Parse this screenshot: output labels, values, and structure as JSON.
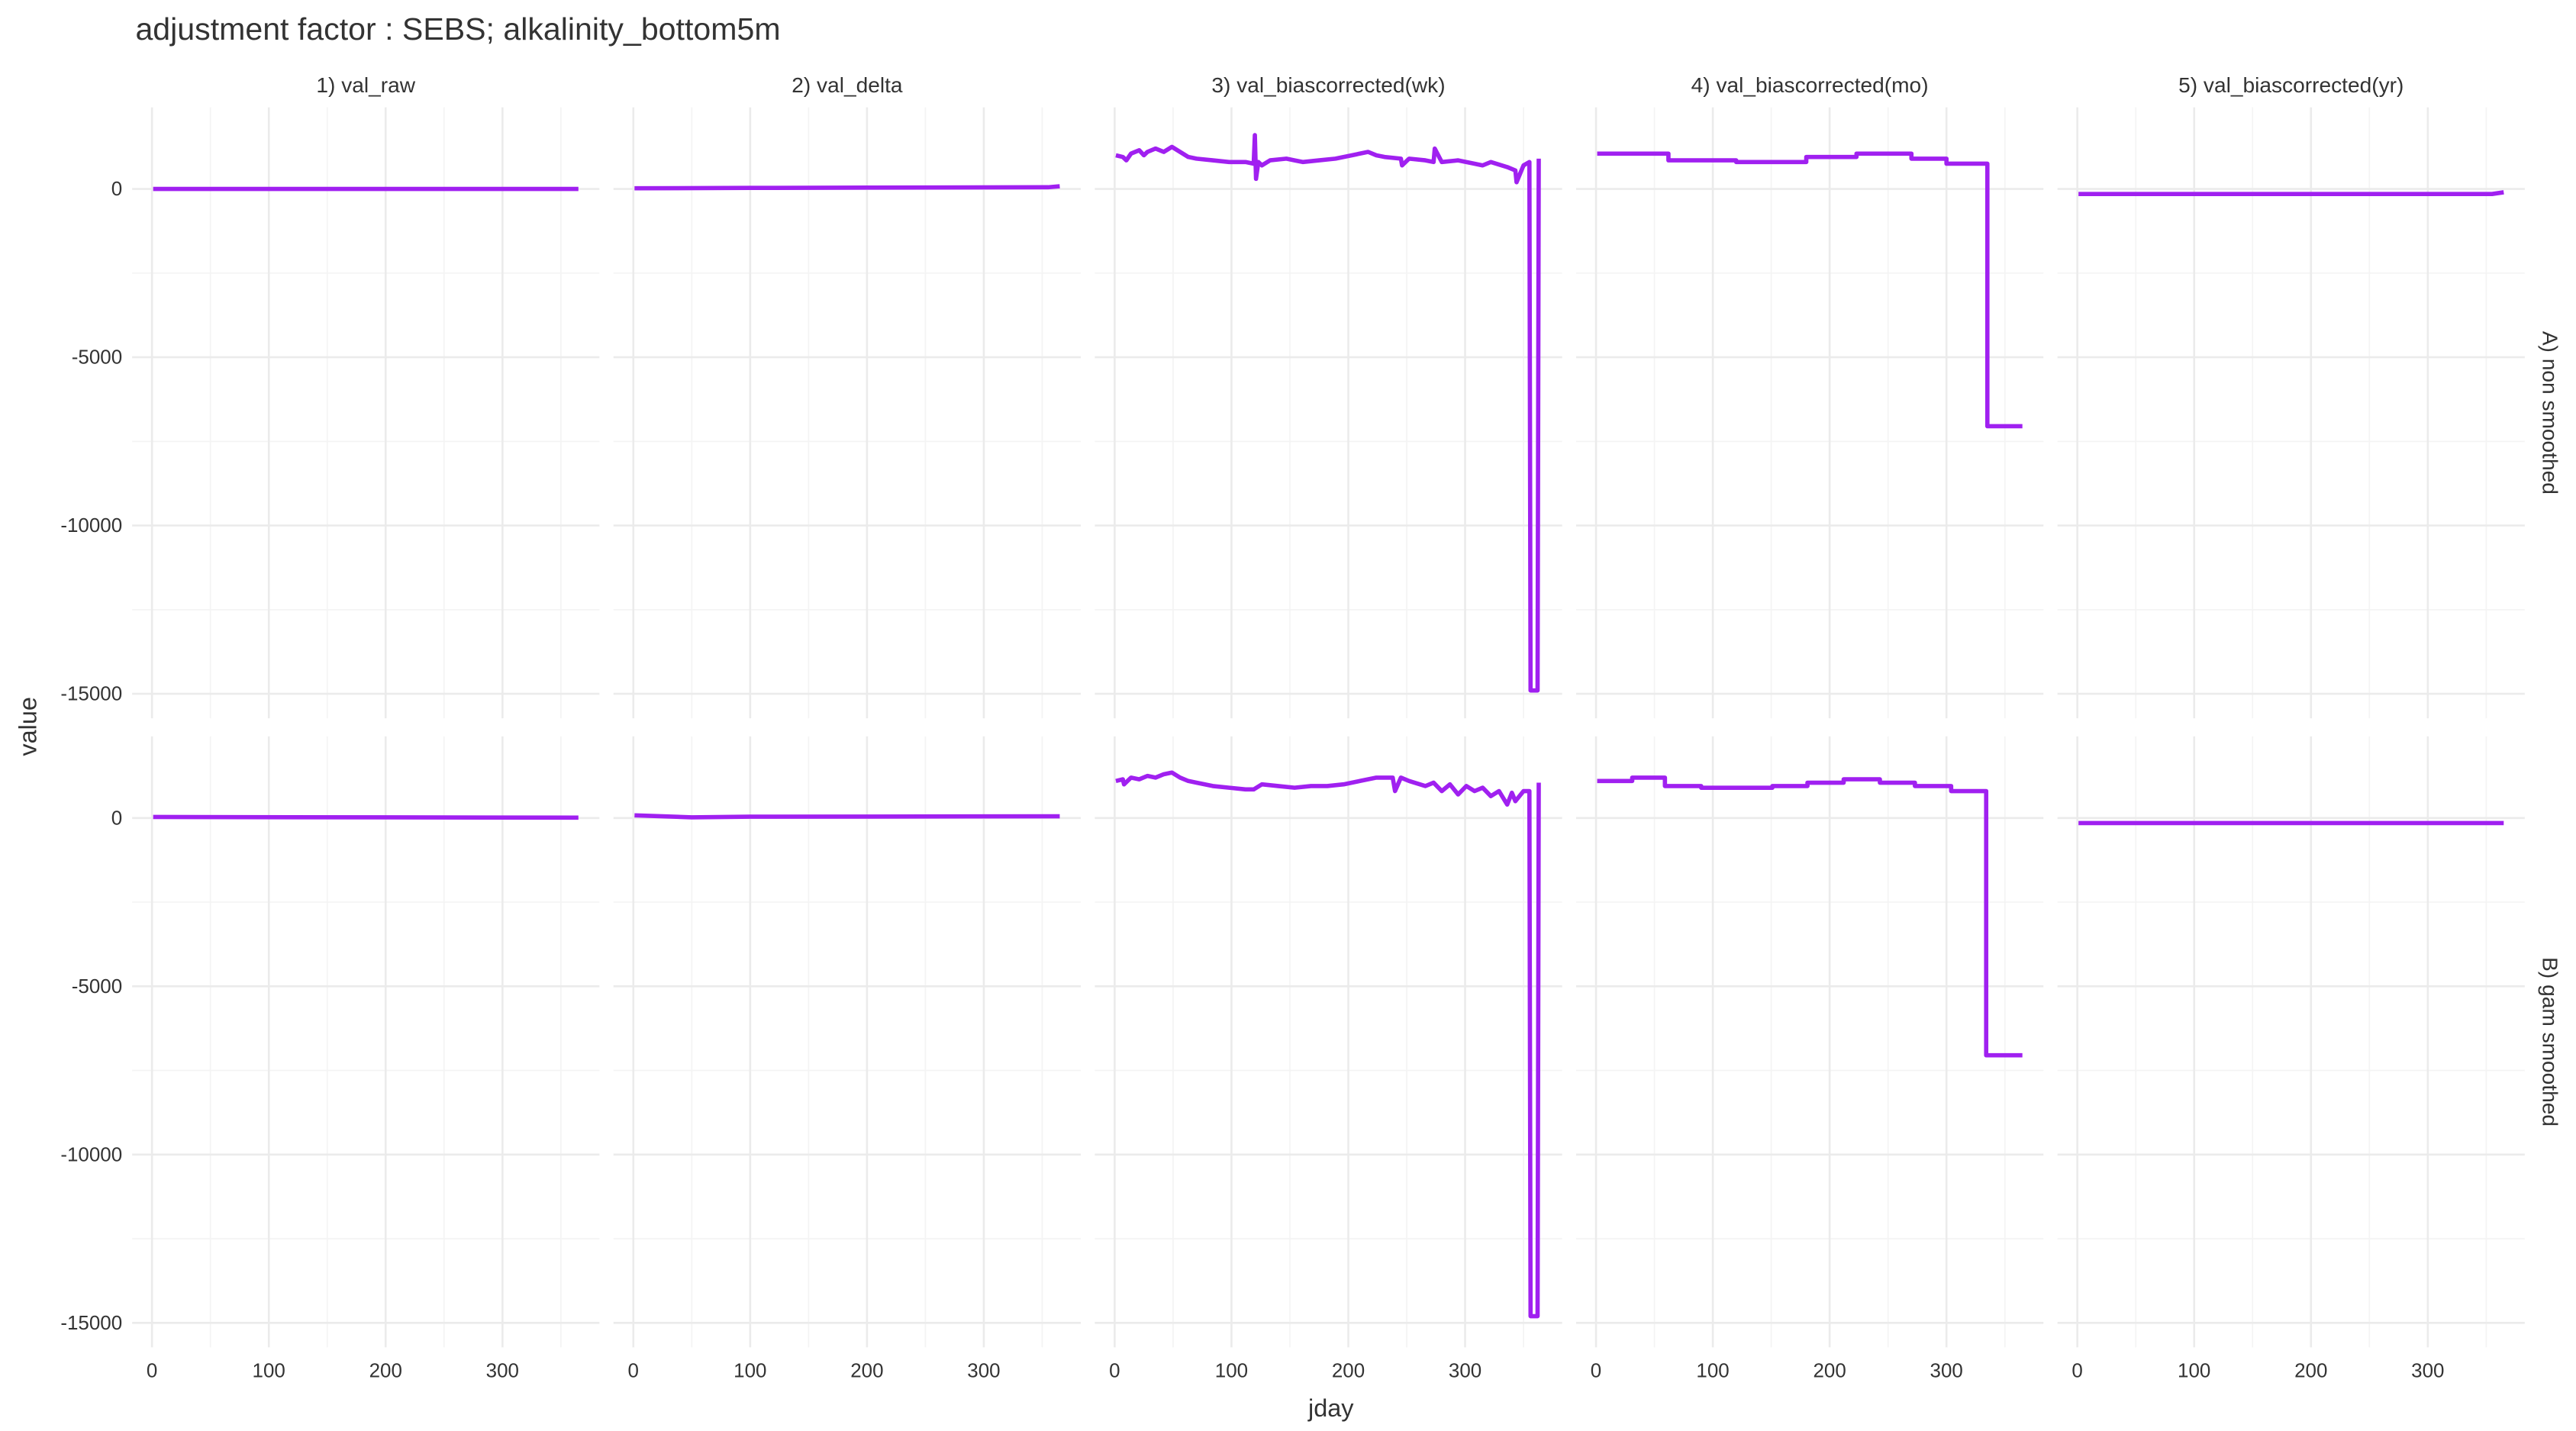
{
  "chart_data": {
    "type": "facet-line",
    "title": "adjustment factor : SEBS; alkalinity_bottom5m",
    "x_label": "jday",
    "y_label": "value",
    "columns": [
      "1) val_raw",
      "2) val_delta",
      "3) val_biascorrected(wk)",
      "4) val_biascorrected(mo)",
      "5) val_biascorrected(yr)"
    ],
    "rows": [
      "A) non smoothed",
      "B) gam smoothed"
    ],
    "color": "#a020f0",
    "grid": true,
    "xlim": [
      -17,
      383
    ],
    "xticks": [
      0,
      100,
      200,
      300
    ],
    "xminorticks": [
      50,
      150,
      250,
      350
    ],
    "ylim": [
      -15725,
      2425
    ],
    "yticks": [
      -15000,
      -10000,
      -5000,
      0
    ],
    "yminorticks": [
      -12500,
      -7500,
      -2500
    ],
    "panels": [
      [
        {
          "x": [
            1,
            365
          ],
          "values": [
            0,
            0
          ]
        },
        {
          "x": [
            1,
            100,
            200,
            355,
            365
          ],
          "values": [
            20,
            30,
            40,
            50,
            80
          ]
        },
        {
          "x": [
            1,
            7,
            10,
            14,
            21,
            25,
            28,
            35,
            42,
            49,
            56,
            63,
            70,
            84,
            98,
            112,
            119,
            120,
            121,
            123,
            126,
            133,
            147,
            154,
            161,
            175,
            189,
            203,
            217,
            224,
            231,
            245,
            246,
            252,
            266,
            273,
            274,
            280,
            294,
            308,
            315,
            322,
            336,
            343,
            344,
            350,
            355,
            356,
            362,
            363
          ],
          "values": [
            1000,
            950,
            850,
            1050,
            1150,
            1000,
            1100,
            1200,
            1100,
            1250,
            1100,
            950,
            900,
            850,
            800,
            800,
            750,
            1600,
            300,
            800,
            700,
            850,
            900,
            850,
            800,
            850,
            900,
            1000,
            1100,
            1000,
            950,
            900,
            700,
            900,
            850,
            800,
            1200,
            800,
            850,
            750,
            700,
            800,
            650,
            550,
            200,
            700,
            800,
            -14900,
            -14900,
            900
          ]
        },
        {
          "x": [
            1,
            62,
            62,
            120,
            120,
            180,
            180,
            223,
            223,
            270,
            270,
            300,
            300,
            335,
            335,
            365
          ],
          "values": [
            1050,
            1050,
            850,
            850,
            800,
            800,
            950,
            950,
            1050,
            1050,
            900,
            900,
            750,
            750,
            -7050,
            -7050
          ]
        },
        {
          "x": [
            1,
            355,
            365
          ],
          "values": [
            -150,
            -150,
            -100
          ]
        }
      ],
      [
        {
          "x": [
            1,
            365
          ],
          "values": [
            30,
            10
          ]
        },
        {
          "x": [
            1,
            50,
            100,
            365
          ],
          "values": [
            80,
            20,
            40,
            50
          ]
        },
        {
          "x": [
            1,
            7,
            8,
            14,
            21,
            28,
            35,
            42,
            49,
            56,
            63,
            70,
            84,
            98,
            112,
            119,
            126,
            140,
            154,
            168,
            182,
            196,
            210,
            224,
            238,
            240,
            245,
            252,
            266,
            273,
            280,
            287,
            294,
            301,
            308,
            315,
            322,
            329,
            336,
            340,
            343,
            350,
            355,
            356,
            362,
            363
          ],
          "values": [
            1100,
            1150,
            1000,
            1200,
            1150,
            1250,
            1200,
            1300,
            1350,
            1200,
            1100,
            1050,
            950,
            900,
            850,
            850,
            1000,
            950,
            900,
            950,
            950,
            1000,
            1100,
            1200,
            1200,
            800,
            1200,
            1100,
            950,
            1050,
            800,
            1000,
            700,
            950,
            800,
            900,
            650,
            800,
            400,
            750,
            500,
            800,
            800,
            -14800,
            -14800,
            1050
          ]
        },
        {
          "x": [
            1,
            31,
            31,
            59,
            59,
            90,
            90,
            120,
            120,
            151,
            151,
            181,
            181,
            212,
            212,
            243,
            243,
            273,
            273,
            304,
            304,
            334,
            334,
            365
          ],
          "values": [
            1100,
            1100,
            1200,
            1200,
            950,
            950,
            900,
            900,
            900,
            900,
            950,
            950,
            1050,
            1050,
            1150,
            1150,
            1050,
            1050,
            950,
            950,
            800,
            800,
            -7050,
            -7050
          ]
        },
        {
          "x": [
            1,
            365
          ],
          "values": [
            -150,
            -150
          ]
        }
      ]
    ]
  }
}
